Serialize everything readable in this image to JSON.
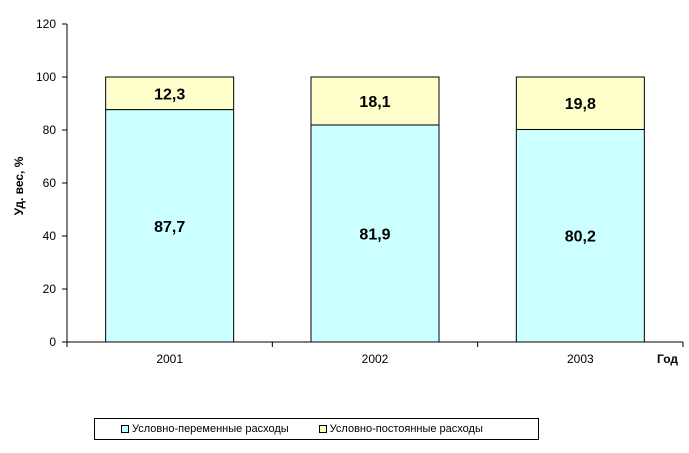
{
  "chart_data": {
    "type": "bar",
    "stacked": true,
    "categories": [
      "2001",
      "2002",
      "2003"
    ],
    "series": [
      {
        "name": "Условно-переменные расходы",
        "values": [
          87.7,
          81.9,
          80.2
        ],
        "labels": [
          "87,7",
          "81,9",
          "80,2"
        ],
        "color": "#CCFFFF"
      },
      {
        "name": "Условно-постоянные расходы",
        "values": [
          12.3,
          18.1,
          19.8
        ],
        "labels": [
          "12,3",
          "18,1",
          "19,8"
        ],
        "color": "#FFFFCC"
      }
    ],
    "xlabel": "Год",
    "ylabel": "Уд. вес, %",
    "ylim": [
      0,
      120
    ],
    "yticks": [
      0,
      20,
      40,
      60,
      80,
      100,
      120
    ],
    "grid": false,
    "legend_position": "bottom"
  }
}
